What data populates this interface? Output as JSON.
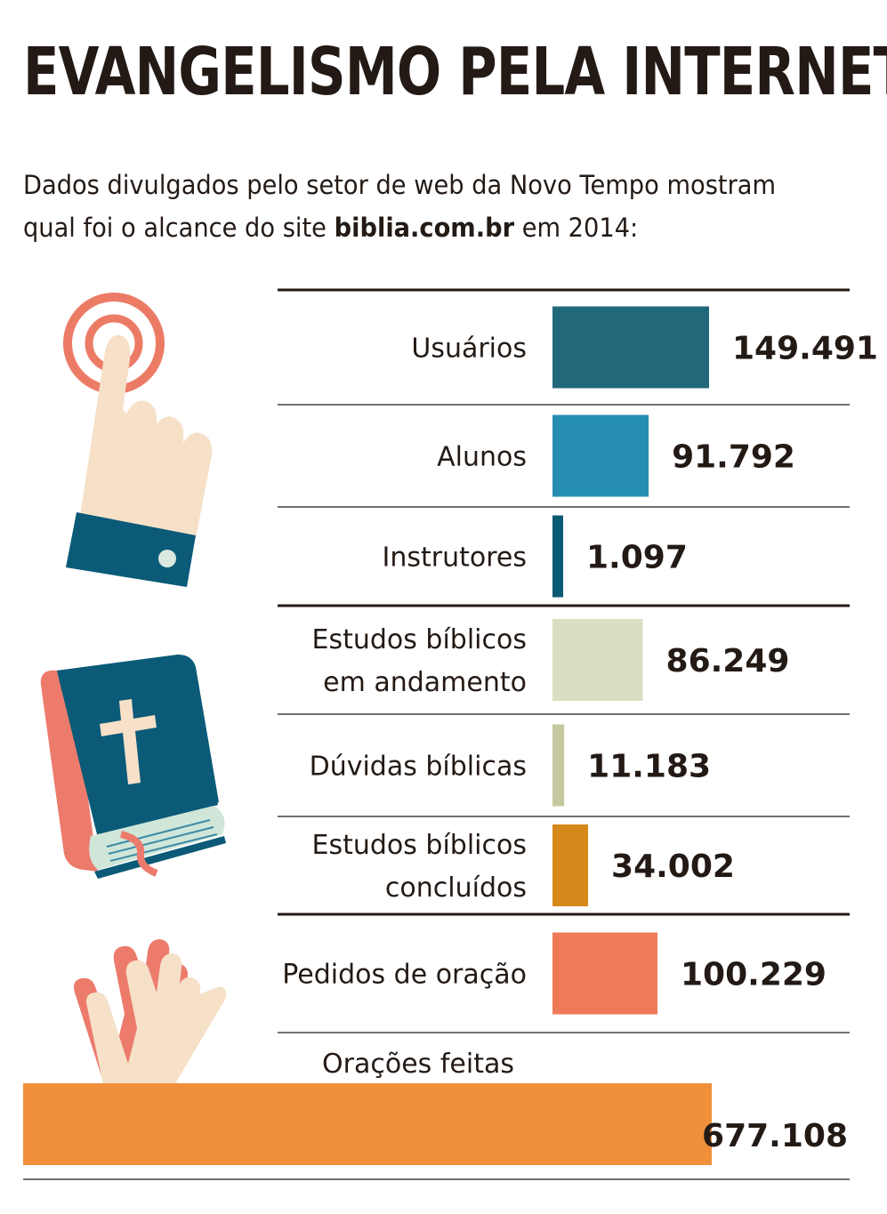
{
  "header": {
    "title": "EVANGELISMO PELA INTERNET",
    "subtitle_line1": "Dados divulgados pelo setor de web da Novo Tempo mostram",
    "subtitle_pre": "qual foi o alcance do site ",
    "subtitle_site": "biblia.com.br",
    "subtitle_post": " em 2014:"
  },
  "icons": [
    "pointing-hand-icon",
    "bible-icon",
    "praying-hands-icon"
  ],
  "chart_data": {
    "type": "bar",
    "orientation": "horizontal",
    "title": "EVANGELISMO PELA INTERNET",
    "categories": [
      [
        "Usuários"
      ],
      [
        "Alunos"
      ],
      [
        "Instrutores"
      ],
      [
        "Estudos bíblicos",
        "em andamento"
      ],
      [
        "Dúvidas bíblicas"
      ],
      [
        "Estudos bíblicos",
        "concluídos"
      ],
      [
        "Pedidos de oração"
      ],
      [
        "Orações feitas"
      ]
    ],
    "values": [
      149491,
      91792,
      1097,
      86249,
      11183,
      34002,
      100229,
      677108
    ],
    "value_labels": [
      "149.491",
      "91.792",
      "1.097",
      "86.249",
      "11.183",
      "34.002",
      "100.229",
      "677.108"
    ],
    "colors": [
      "#22687b",
      "#268fb1",
      "#0b5a74",
      "#dbdfc2",
      "#c5c89e",
      "#d5891a",
      "#ee7a58",
      "#f0903a"
    ],
    "groups": [
      {
        "label": "pointing-hand-icon",
        "items": [
          0,
          1,
          2
        ]
      },
      {
        "label": "bible-icon",
        "items": [
          3,
          4,
          5
        ]
      },
      {
        "label": "praying-hands-icon",
        "items": [
          6,
          7
        ]
      }
    ],
    "xlabel": "",
    "ylabel": ""
  }
}
